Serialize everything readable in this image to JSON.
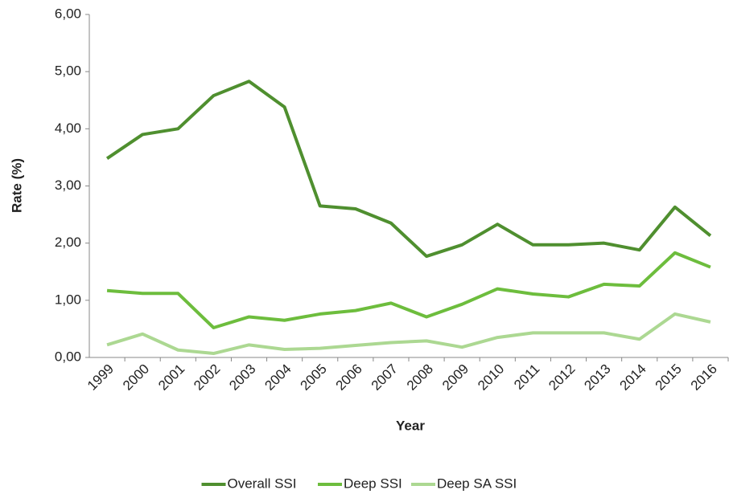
{
  "chart_data": {
    "type": "line",
    "y_label": "Rate (%)",
    "x_label": "Year",
    "categories": [
      "1999",
      "2000",
      "2001",
      "2002",
      "2003",
      "2004",
      "2005",
      "2006",
      "2007",
      "2008",
      "2009",
      "2010",
      "2011",
      "2012",
      "2013",
      "2014",
      "2015",
      "2016"
    ],
    "series": [
      {
        "name": "Overall SSI",
        "color": "#4f8f2f",
        "values": [
          3.48,
          3.9,
          4.0,
          4.58,
          4.83,
          4.38,
          2.65,
          2.6,
          2.35,
          1.77,
          1.97,
          2.33,
          1.97,
          1.97,
          2.0,
          1.88,
          2.63,
          2.13
        ]
      },
      {
        "name": "Deep SSI",
        "color": "#6dbd3d",
        "values": [
          1.17,
          1.12,
          1.12,
          0.52,
          0.71,
          0.65,
          0.76,
          0.82,
          0.95,
          0.71,
          0.93,
          1.2,
          1.11,
          1.06,
          1.28,
          1.25,
          1.83,
          1.58
        ]
      },
      {
        "name": "Deep SA SSI",
        "color": "#acd892",
        "values": [
          0.22,
          0.41,
          0.13,
          0.07,
          0.22,
          0.14,
          0.16,
          0.21,
          0.26,
          0.29,
          0.18,
          0.35,
          0.43,
          0.43,
          0.43,
          0.32,
          0.76,
          0.62
        ]
      }
    ],
    "ylim": [
      0,
      6
    ],
    "yticks": [
      {
        "value": 0,
        "label": "0,00"
      },
      {
        "value": 1,
        "label": "1,00"
      },
      {
        "value": 2,
        "label": "2,00"
      },
      {
        "value": 3,
        "label": "3,00"
      },
      {
        "value": 4,
        "label": "4,00"
      },
      {
        "value": 5,
        "label": "5,00"
      },
      {
        "value": 6,
        "label": "6,00"
      }
    ],
    "grid": false,
    "legend": "bottom"
  }
}
